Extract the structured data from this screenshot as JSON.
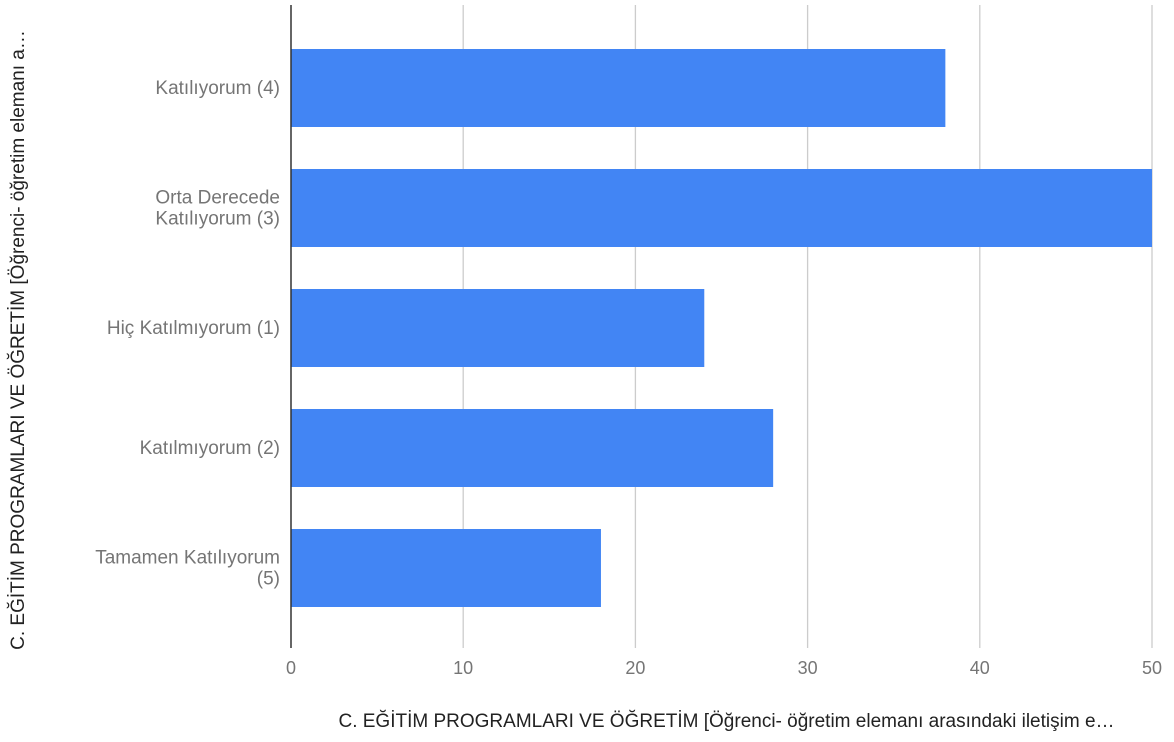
{
  "chart_data": {
    "type": "bar",
    "orientation": "horizontal",
    "categories": [
      "Katılıyorum (4)",
      "Orta Derecede Katılıyorum (3)",
      "Hiç Katılmıyorum (1)",
      "Katılmıyorum (2)",
      "Tamamen Katılıyorum (5)"
    ],
    "category_lines": [
      [
        "Katılıyorum (4)"
      ],
      [
        "Orta Derecede",
        "Katılıyorum (3)"
      ],
      [
        "Hiç Katılmıyorum (1)"
      ],
      [
        "Katılmıyorum (2)"
      ],
      [
        "Tamamen Katılıyorum",
        "(5)"
      ]
    ],
    "values": [
      38,
      50,
      24,
      28,
      18
    ],
    "xlabel": "C. EĞİTİM PROGRAMLARI VE ÖĞRETİM [Öğrenci- öğretim elemanı arasındaki iletişim e…",
    "ylabel": "C. EĞİTİM PROGRAMLARI VE ÖĞRETİM [Öğrenci- öğretim elemanı a…",
    "xlim": [
      0,
      50
    ],
    "x_ticks": [
      0,
      10,
      20,
      30,
      40,
      50
    ],
    "grid": true,
    "legend": "none",
    "colors": {
      "bar": "#4285f4",
      "grid": "#cccccc",
      "axis": "#333333",
      "tick_text": "#757575",
      "title_text": "#222222"
    }
  }
}
